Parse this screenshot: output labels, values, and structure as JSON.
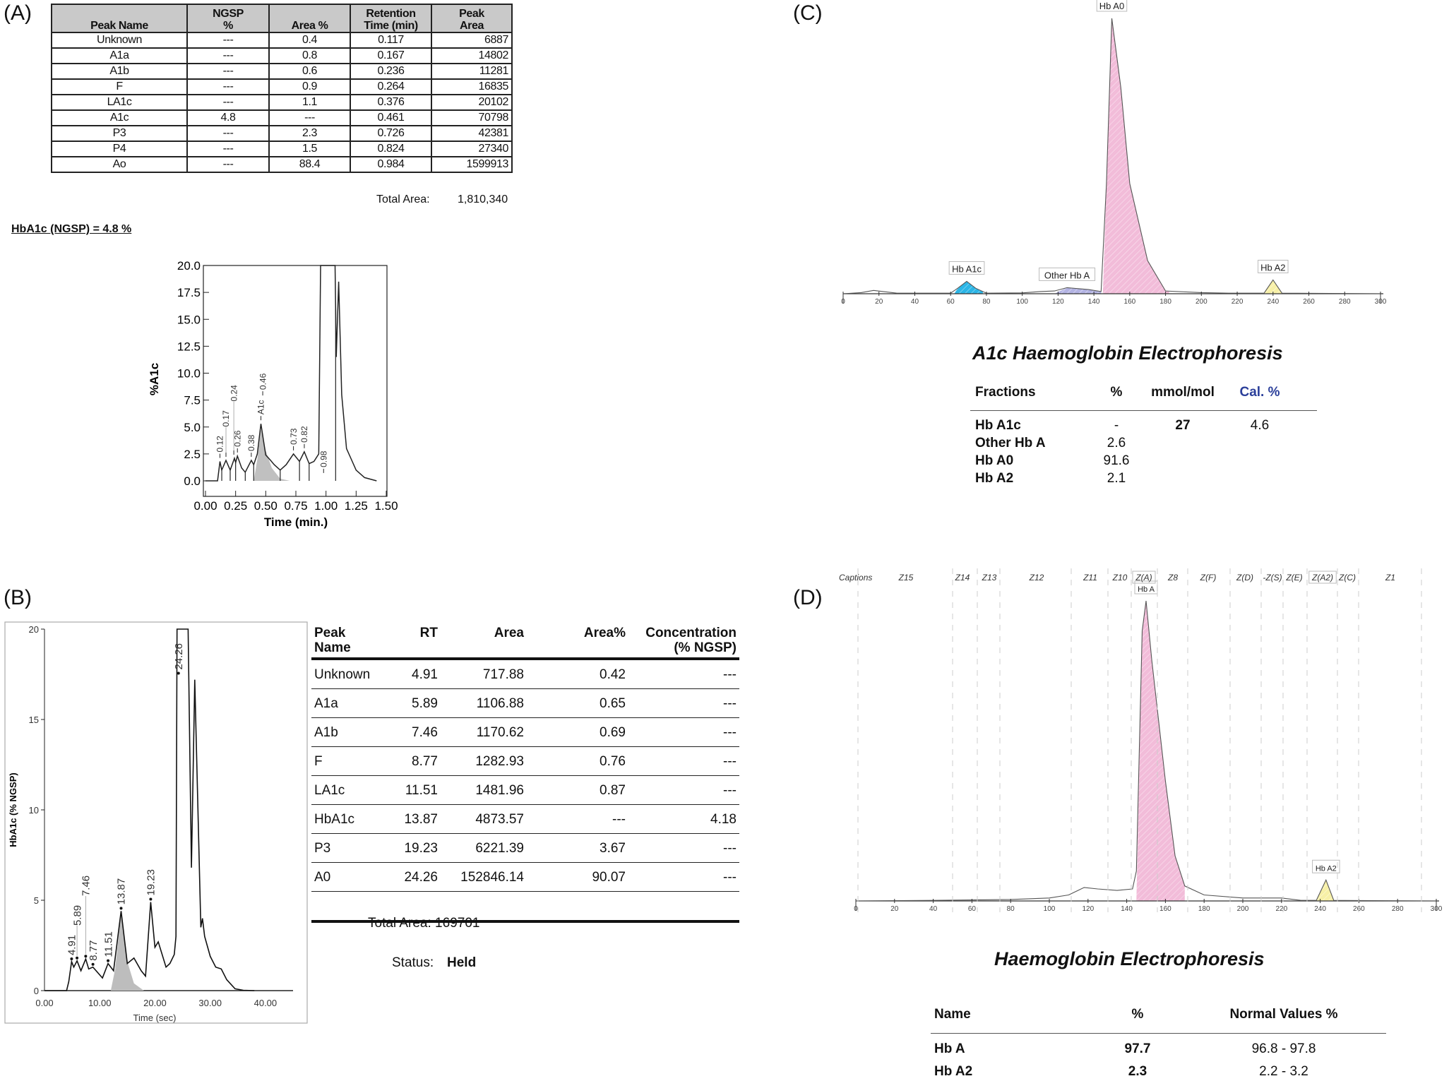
{
  "panels": {
    "a": "(A)",
    "b": "(B)",
    "c": "(C)",
    "d": "(D)"
  },
  "table_a": {
    "headers": [
      "Peak Name",
      "NGSP %",
      "Area %",
      "Retention Time (min)",
      "Peak Area"
    ],
    "header_lines": [
      [
        "Peak Name"
      ],
      [
        "NGSP",
        "%"
      ],
      [
        "Area %"
      ],
      [
        "Retention",
        "Time (min)"
      ],
      [
        "Peak",
        "Area"
      ]
    ],
    "rows": [
      [
        "Unknown",
        "---",
        "0.4",
        "0.117",
        "6887"
      ],
      [
        "A1a",
        "---",
        "0.8",
        "0.167",
        "14802"
      ],
      [
        "A1b",
        "---",
        "0.6",
        "0.236",
        "11281"
      ],
      [
        "F",
        "---",
        "0.9",
        "0.264",
        "16835"
      ],
      [
        "LA1c",
        "---",
        "1.1",
        "0.376",
        "20102"
      ],
      [
        "A1c",
        "4.8",
        "---",
        "0.461",
        "70798"
      ],
      [
        "P3",
        "---",
        "2.3",
        "0.726",
        "42381"
      ],
      [
        "P4",
        "---",
        "1.5",
        "0.824",
        "27340"
      ],
      [
        "Ao",
        "---",
        "88.4",
        "0.984",
        "1599913"
      ]
    ],
    "total_label": "Total Area:",
    "total_value": "1,810,340",
    "result": "HbA1c (NGSP) = 4.8  %"
  },
  "table_b": {
    "headers": [
      "Peak Name",
      "RT",
      "Area",
      "Area%",
      "Concentration (% NGSP)"
    ],
    "header_lines": [
      [
        "Peak",
        "Name"
      ],
      [
        "RT"
      ],
      [
        "Area"
      ],
      [
        "Area%"
      ],
      [
        "Concentration",
        "(% NGSP)"
      ]
    ],
    "rows": [
      [
        "Unknown",
        "4.91",
        "717.88",
        "0.42",
        "---"
      ],
      [
        "A1a",
        "5.89",
        "1106.88",
        "0.65",
        "---"
      ],
      [
        "A1b",
        "7.46",
        "1170.62",
        "0.69",
        "---"
      ],
      [
        "F",
        "8.77",
        "1282.93",
        "0.76",
        "---"
      ],
      [
        "LA1c",
        "11.51",
        "1481.96",
        "0.87",
        "---"
      ],
      [
        "HbA1c",
        "13.87",
        "4873.57",
        "---",
        "4.18"
      ],
      [
        "P3",
        "19.23",
        "6221.39",
        "3.67",
        "---"
      ],
      [
        "A0",
        "24.26",
        "152846.14",
        "90.07",
        "---"
      ]
    ],
    "total": "Total Area:  169701",
    "status_label": "Status:",
    "status_value": "Held"
  },
  "table_c": {
    "title": "A1c Haemoglobin Electrophoresis",
    "headers": [
      "Fractions",
      "%",
      "mmol/mol",
      "Cal. %"
    ],
    "rows": [
      [
        "Hb A1c",
        "-",
        "27",
        "4.6"
      ],
      [
        "Other Hb A",
        "2.6",
        "",
        ""
      ],
      [
        "Hb A0",
        "91.6",
        "",
        ""
      ],
      [
        "Hb A2",
        "2.1",
        "",
        ""
      ]
    ],
    "cal_color": "#2b3f9a"
  },
  "table_d": {
    "title": "Haemoglobin Electrophoresis",
    "headers": [
      "Name",
      "%",
      "Normal Values %"
    ],
    "rows": [
      [
        "Hb A",
        "97.7",
        "96.8 - 97.8"
      ],
      [
        "Hb A2",
        "2.3",
        "2.2 -  3.2"
      ]
    ]
  },
  "chart_data": [
    {
      "id": "A",
      "type": "line",
      "xlabel": "Time (min.)",
      "ylabel": "%A1c",
      "xlim": [
        0,
        1.5
      ],
      "ylim": [
        0,
        20
      ],
      "xticks": [
        "0.00",
        "0.25",
        "0.50",
        "0.75",
        "1.00",
        "1.25",
        "1.50"
      ],
      "yticks": [
        "0.0",
        "2.5",
        "5.0",
        "7.5",
        "10.0",
        "12.5",
        "15.0",
        "17.5",
        "20.0"
      ],
      "points": [
        [
          0,
          0
        ],
        [
          0.1,
          0
        ],
        [
          0.12,
          1.8
        ],
        [
          0.135,
          1.0
        ],
        [
          0.17,
          1.9
        ],
        [
          0.205,
          1.0
        ],
        [
          0.24,
          2.1
        ],
        [
          0.25,
          1.7
        ],
        [
          0.265,
          2.3
        ],
        [
          0.3,
          1.2
        ],
        [
          0.33,
          0.8
        ],
        [
          0.38,
          1.9
        ],
        [
          0.4,
          1.5
        ],
        [
          0.43,
          2.5
        ],
        [
          0.46,
          5.3
        ],
        [
          0.5,
          2.4
        ],
        [
          0.54,
          1.9
        ],
        [
          0.57,
          1.5
        ],
        [
          0.62,
          1.0
        ],
        [
          0.67,
          1.5
        ],
        [
          0.73,
          2.5
        ],
        [
          0.78,
          1.8
        ],
        [
          0.82,
          2.7
        ],
        [
          0.86,
          1.6
        ],
        [
          0.9,
          1.8
        ],
        [
          0.94,
          2.5
        ],
        [
          0.955,
          20.5
        ],
        [
          1.075,
          20.5
        ],
        [
          1.085,
          11.5
        ],
        [
          1.105,
          18.5
        ],
        [
          1.13,
          8
        ],
        [
          1.17,
          3
        ],
        [
          1.21,
          2
        ],
        [
          1.25,
          1
        ],
        [
          1.32,
          0.3
        ],
        [
          1.42,
          0
        ]
      ],
      "shaded": [
        [
          0.4,
          0
        ],
        [
          0.43,
          2
        ],
        [
          0.46,
          4.8
        ],
        [
          0.5,
          2.8
        ],
        [
          0.55,
          1.2
        ],
        [
          0.62,
          0.2
        ],
        [
          0.7,
          0
        ]
      ],
      "boundaries": [
        0.135,
        0.205,
        0.25,
        0.33,
        0.4,
        0.62,
        0.78,
        0.86,
        1.08
      ],
      "peak_labels": [
        [
          "0.12",
          0.12,
          1.8
        ],
        [
          "0.17",
          0.17,
          1.9
        ],
        [
          "0.24",
          0.235,
          2.1
        ],
        [
          "0.26",
          0.265,
          2.3
        ],
        [
          "0.38",
          0.38,
          1.9
        ],
        [
          "0.46",
          0.475,
          7.6
        ],
        [
          "A1c",
          0.46,
          5.3
        ],
        [
          "0.73",
          0.73,
          2.5
        ],
        [
          "0.82",
          0.82,
          2.7
        ],
        [
          "0.98",
          0.98,
          0.4
        ]
      ],
      "fill_color": "#c0c0c0"
    },
    {
      "id": "B",
      "type": "line",
      "xlabel": "Time (sec)",
      "ylabel": "HbA1c (% NGSP)",
      "xlim": [
        0,
        45
      ],
      "ylim": [
        0,
        20
      ],
      "xticks": [
        "0.00",
        "10.00",
        "20.00",
        "30.00",
        "40.00"
      ],
      "yticks": [
        "0",
        "5",
        "10",
        "15",
        "20"
      ],
      "points": [
        [
          0,
          0
        ],
        [
          4,
          0
        ],
        [
          4.4,
          0.5
        ],
        [
          4.91,
          1.6
        ],
        [
          5.3,
          1.3
        ],
        [
          5.89,
          1.65
        ],
        [
          6.6,
          1.1
        ],
        [
          7.46,
          1.75
        ],
        [
          8.0,
          1.2
        ],
        [
          8.77,
          1.3
        ],
        [
          10.5,
          0.7
        ],
        [
          11.51,
          1.5
        ],
        [
          12.5,
          1.1
        ],
        [
          13.87,
          4.4
        ],
        [
          15,
          1.5
        ],
        [
          16.2,
          1.8
        ],
        [
          17.5,
          1.1
        ],
        [
          18.3,
          0.8
        ],
        [
          19.23,
          4.9
        ],
        [
          20,
          2.4
        ],
        [
          20.6,
          2.7
        ],
        [
          22,
          1.3
        ],
        [
          22.7,
          1.5
        ],
        [
          23.5,
          2
        ],
        [
          23.8,
          3
        ],
        [
          24,
          20.5
        ],
        [
          26,
          20.5
        ],
        [
          26.6,
          6.8
        ],
        [
          27.2,
          17.2
        ],
        [
          28.3,
          3.5
        ],
        [
          28.6,
          4
        ],
        [
          29,
          3
        ],
        [
          30,
          1.9
        ],
        [
          31,
          1.3
        ],
        [
          32,
          1.2
        ],
        [
          33,
          0.6
        ],
        [
          34.5,
          0.1
        ],
        [
          36,
          0.02
        ],
        [
          38,
          0
        ]
      ],
      "shaded": [
        [
          12,
          0
        ],
        [
          12.8,
          1.2
        ],
        [
          13.87,
          4.3
        ],
        [
          15,
          1.6
        ],
        [
          16.2,
          0.4
        ],
        [
          18,
          0
        ]
      ],
      "peak_labels": [
        [
          "4.91",
          4.91,
          1.6
        ],
        [
          "5.89",
          5.89,
          1.65
        ],
        [
          "7.46",
          7.46,
          1.75
        ],
        [
          "8.77",
          8.77,
          1.3
        ],
        [
          "11.51",
          11.51,
          1.5
        ],
        [
          "13.87",
          13.87,
          4.4
        ],
        [
          "19.23",
          19.23,
          4.9
        ],
        [
          "24.26",
          24.26,
          17.4
        ]
      ],
      "fill_color": "#bdbdbd"
    },
    {
      "id": "C",
      "type": "area",
      "xlim": [
        0,
        300
      ],
      "ylim": [
        0,
        100
      ],
      "xticks": [
        "0",
        "20",
        "40",
        "60",
        "80",
        "100",
        "120",
        "140",
        "160",
        "180",
        "200",
        "220",
        "240",
        "260",
        "280",
        "300"
      ],
      "points": [
        [
          0,
          0
        ],
        [
          10,
          0.4
        ],
        [
          17,
          1.2
        ],
        [
          30,
          0.2
        ],
        [
          60,
          0.2
        ],
        [
          64,
          2
        ],
        [
          69,
          4.5
        ],
        [
          74,
          2
        ],
        [
          80,
          0.2
        ],
        [
          100,
          0.3
        ],
        [
          110,
          0.8
        ],
        [
          118,
          1
        ],
        [
          125,
          2.2
        ],
        [
          137,
          1.5
        ],
        [
          144,
          0.8
        ],
        [
          147,
          40
        ],
        [
          150,
          100
        ],
        [
          155,
          75
        ],
        [
          160,
          40
        ],
        [
          170,
          12
        ],
        [
          180,
          1
        ],
        [
          200,
          0.4
        ],
        [
          215,
          0.2
        ],
        [
          235,
          0.2
        ],
        [
          240,
          5
        ],
        [
          245,
          0.2
        ],
        [
          300,
          0
        ]
      ],
      "fractions": [
        {
          "label": "Hb A1c",
          "from": 62,
          "to": 78,
          "peak": 69,
          "color": "#2bb5e6"
        },
        {
          "label": "Other Hb A",
          "from": 118,
          "to": 144,
          "peak": 125,
          "color": "#b3b3e3"
        },
        {
          "label": "Hb A0",
          "from": 145,
          "to": 182,
          "peak": 150,
          "color": "#f2bcd9"
        },
        {
          "label": "Hb A2",
          "from": 234,
          "to": 246,
          "peak": 240,
          "color": "#f7f0a6"
        }
      ]
    },
    {
      "id": "D",
      "type": "area",
      "xlim": [
        0,
        300
      ],
      "ylim": [
        0,
        100
      ],
      "xticks": [
        "0",
        "20",
        "40",
        "60",
        "80",
        "100",
        "120",
        "140",
        "160",
        "180",
        "200",
        "220",
        "240",
        "260",
        "280",
        "300"
      ],
      "captions": [
        "Captions",
        "Z15",
        "Z14",
        "Z13",
        "Z12",
        "Z11",
        "Z10",
        "Z(A)",
        "Z8",
        "Z(F)",
        "Z(D)",
        "-Z(S)",
        "Z(E)",
        "Z(A2)",
        "Z(C)",
        "Z1"
      ],
      "zone_bounds": [
        0,
        27,
        34,
        41,
        61,
        72,
        78,
        86,
        94,
        108,
        116,
        124,
        132,
        140,
        146,
        162
      ],
      "points": [
        [
          0,
          0
        ],
        [
          40,
          0.2
        ],
        [
          80,
          0.5
        ],
        [
          100,
          1
        ],
        [
          110,
          2
        ],
        [
          118,
          4.5
        ],
        [
          125,
          4
        ],
        [
          135,
          3.5
        ],
        [
          143,
          4
        ],
        [
          145,
          10
        ],
        [
          148,
          90
        ],
        [
          150,
          100
        ],
        [
          153,
          80
        ],
        [
          160,
          40
        ],
        [
          165,
          15
        ],
        [
          170,
          5
        ],
        [
          180,
          2
        ],
        [
          200,
          1
        ],
        [
          220,
          1
        ],
        [
          230,
          0.2
        ],
        [
          238,
          0.2
        ],
        [
          243,
          7
        ],
        [
          247,
          0.2
        ],
        [
          300,
          0
        ]
      ],
      "fractions": [
        {
          "label": "Hb A",
          "from": 145,
          "to": 170,
          "peak": 150,
          "color": "#f2bcd9"
        },
        {
          "label": "Hb A2",
          "from": 238,
          "to": 248,
          "peak": 243,
          "color": "#f7f0a6"
        }
      ]
    }
  ]
}
